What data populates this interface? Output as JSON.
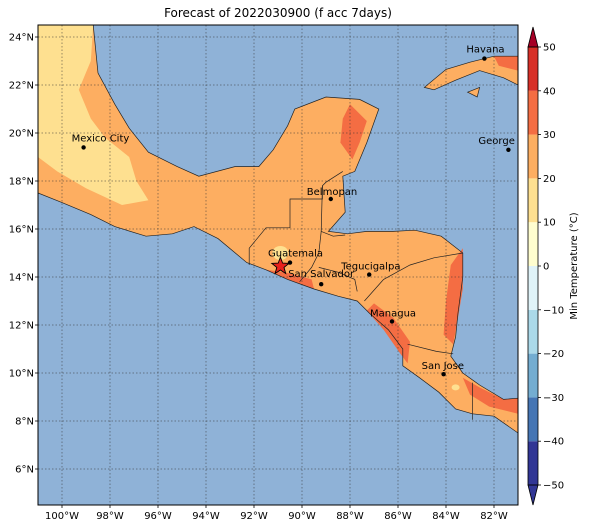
{
  "title": "Forecast of 2022030900 (f acc 7days)",
  "map": {
    "lon_range": [
      -101,
      -81
    ],
    "lat_range": [
      4.5,
      24.5
    ],
    "lon_ticks": [
      {
        "v": -100,
        "label": "100°W"
      },
      {
        "v": -98,
        "label": "98°W"
      },
      {
        "v": -96,
        "label": "96°W"
      },
      {
        "v": -94,
        "label": "94°W"
      },
      {
        "v": -92,
        "label": "92°W"
      },
      {
        "v": -90,
        "label": "90°W"
      },
      {
        "v": -88,
        "label": "88°W"
      },
      {
        "v": -86,
        "label": "86°W"
      },
      {
        "v": -84,
        "label": "84°W"
      },
      {
        "v": -82,
        "label": "82°W"
      }
    ],
    "lat_ticks": [
      {
        "v": 6,
        "label": "6°N"
      },
      {
        "v": 8,
        "label": "8°N"
      },
      {
        "v": 10,
        "label": "10°N"
      },
      {
        "v": 12,
        "label": "12°N"
      },
      {
        "v": 14,
        "label": "14°N"
      },
      {
        "v": 16,
        "label": "16°N"
      },
      {
        "v": 18,
        "label": "18°N"
      },
      {
        "v": 20,
        "label": "20°N"
      },
      {
        "v": 22,
        "label": "22°N"
      },
      {
        "v": 24,
        "label": "24°N"
      }
    ],
    "ocean_color": "#8fb2d7",
    "grid": "dotted",
    "cities": [
      {
        "name": "Mexico City",
        "lon": -99.1,
        "lat": 19.4
      },
      {
        "name": "Havana",
        "lon": -82.4,
        "lat": 23.1
      },
      {
        "name": "George Tov",
        "lon": -81.4,
        "lat": 19.3
      },
      {
        "name": "Belmopan",
        "lon": -88.8,
        "lat": 17.25
      },
      {
        "name": "Guatemala",
        "lon": -90.5,
        "lat": 14.6
      },
      {
        "name": "San Salvador",
        "lon": -89.2,
        "lat": 13.7
      },
      {
        "name": "Tegucigalpa",
        "lon": -87.2,
        "lat": 14.1
      },
      {
        "name": "Managua",
        "lon": -86.25,
        "lat": 12.15
      },
      {
        "name": "San Jose",
        "lon": -84.1,
        "lat": 9.95
      }
    ],
    "marker": {
      "symbol": "red-star",
      "lon": -90.9,
      "lat": 14.45
    }
  },
  "colorbar": {
    "label": "Min Temperature (°C)",
    "levels": [
      -50,
      -40,
      -30,
      -20,
      -10,
      0,
      10,
      20,
      30,
      40,
      50
    ],
    "tick_labels": [
      "−50",
      "−40",
      "−30",
      "−20",
      "−10",
      "0",
      "10",
      "20",
      "30",
      "40",
      "50"
    ],
    "colors": [
      "#313695",
      "#4575b4",
      "#74add1",
      "#abd9e9",
      "#e0f3f8",
      "#fffecf",
      "#fee090",
      "#fdae61",
      "#f46d43",
      "#d73027",
      "#a50026"
    ]
  }
}
